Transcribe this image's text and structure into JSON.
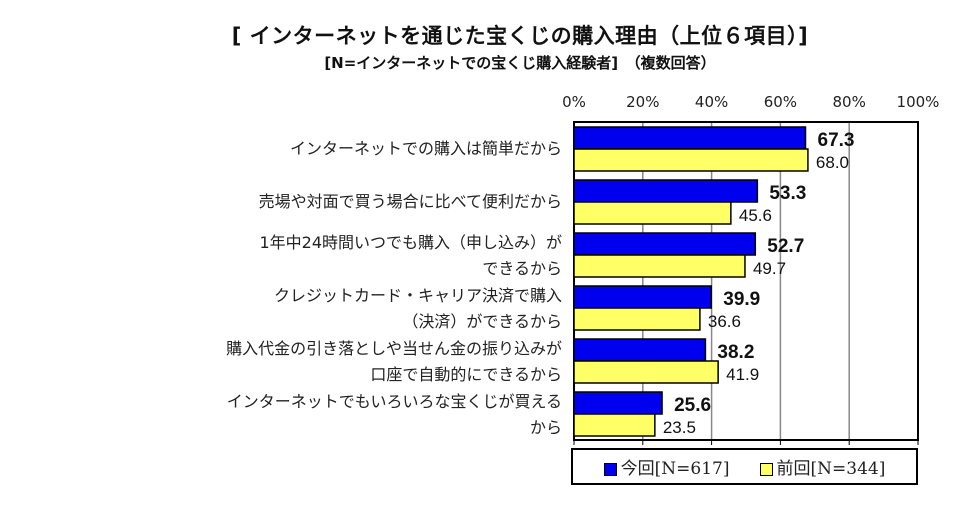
{
  "chart_data": {
    "type": "bar",
    "orientation": "horizontal",
    "title": "[ インターネットを通じた宝くじの購入理由（上位６項目）]",
    "subtitle": "[N=インターネットでの宝くじ購入経験者]　（複数回答）",
    "categories": [
      [
        "インターネットでの購入は簡単だから"
      ],
      [
        "売場や対面で買う場合に比べて便利だから"
      ],
      [
        "1年中24時間いつでも購入（申し込み）が",
        "できるから"
      ],
      [
        "クレジットカード・キャリア決済で購入",
        "（決済）ができるから"
      ],
      [
        "購入代金の引き落としや当せん金の振り込みが",
        "口座で自動的にできるから"
      ],
      [
        "インターネットでもいろいろな宝くじが買える",
        "から"
      ]
    ],
    "series": [
      {
        "name": "今回[N=617]",
        "color": "#0000ee",
        "values": [
          67.3,
          53.3,
          52.7,
          39.9,
          38.2,
          25.6
        ],
        "labels": [
          "67.3",
          "53.3",
          "52.7",
          "39.9",
          "38.2",
          "25.6"
        ]
      },
      {
        "name": "前回[N=344]",
        "color": "#ffff66",
        "values": [
          68.0,
          45.6,
          49.7,
          36.6,
          41.9,
          23.5
        ],
        "labels": [
          "68.0",
          "45.6",
          "49.7",
          "36.6",
          "41.9",
          "23.5"
        ]
      }
    ],
    "xlim": [
      0,
      100
    ],
    "xticks": [
      "0%",
      "20%",
      "40%",
      "60%",
      "80%",
      "100%"
    ],
    "grid": true,
    "legend_position": "bottom"
  }
}
